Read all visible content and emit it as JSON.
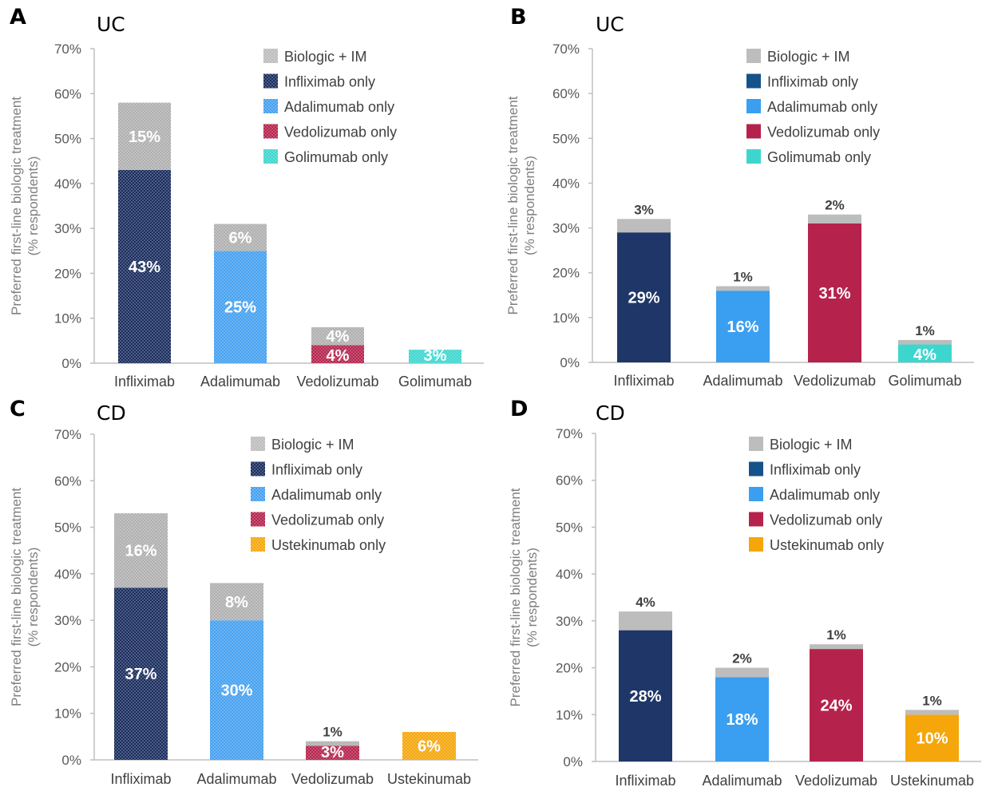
{
  "chart_data": [
    {
      "type": "bar",
      "stacked": true,
      "panel": "A",
      "subtitle": "UC",
      "ylabel": "Preferred first-line biologic treatment (% respondents)",
      "ylim": [
        0,
        70
      ],
      "yticks": [
        "0%",
        "10%",
        "20%",
        "30%",
        "40%",
        "50%",
        "60%",
        "70%"
      ],
      "categories": [
        "Infliximab",
        "Adalimumab",
        "Vedolizumab",
        "Golimumab"
      ],
      "legend": [
        "Biologic + IM",
        "Infliximab only",
        "Adalimumab only",
        "Vedolizumab only",
        "Golimumab only"
      ],
      "legend_colors": [
        "#bdbdbd",
        "#1a2d5e",
        "#44a0f0",
        "#b5234c",
        "#3dd6cf"
      ],
      "pattern": "dotted",
      "bars": [
        {
          "only": 43,
          "only_label": "43%",
          "im": 15,
          "im_label": "15%",
          "color": "#1a2d5e"
        },
        {
          "only": 25,
          "only_label": "25%",
          "im": 6,
          "im_label": "6%",
          "color": "#44a0f0"
        },
        {
          "only": 4,
          "only_label": "4%",
          "im": 4,
          "im_label": "4%",
          "color": "#b5234c"
        },
        {
          "only": 3,
          "only_label": "3%",
          "im": 0,
          "im_label": "",
          "color": "#3dd6cf"
        }
      ]
    },
    {
      "type": "bar",
      "stacked": true,
      "panel": "B",
      "subtitle": "UC",
      "ylabel": "Preferred first-line biologic treatment (% respondents)",
      "ylim": [
        0,
        70
      ],
      "yticks": [
        "0%",
        "10%",
        "20%",
        "30%",
        "40%",
        "50%",
        "60%",
        "70%"
      ],
      "categories": [
        "Infliximab",
        "Adalimumab",
        "Vedolizumab",
        "Golimumab"
      ],
      "legend": [
        "Biologic + IM",
        "Infliximab only",
        "Adalimumab only",
        "Vedolizumab only",
        "Golimumab only"
      ],
      "legend_colors": [
        "#bdbdbd",
        "#16528a",
        "#3a9ff0",
        "#b5234c",
        "#3dd6cf"
      ],
      "pattern": "solid",
      "bars": [
        {
          "only": 29,
          "only_label": "29%",
          "im": 3,
          "im_label": "3%",
          "color": "#1f3768"
        },
        {
          "only": 16,
          "only_label": "16%",
          "im": 1,
          "im_label": "1%",
          "color": "#3a9ff0"
        },
        {
          "only": 31,
          "only_label": "31%",
          "im": 2,
          "im_label": "2%",
          "color": "#b5234c"
        },
        {
          "only": 4,
          "only_label": "4%",
          "im": 1,
          "im_label": "1%",
          "color": "#3dd6cf"
        }
      ]
    },
    {
      "type": "bar",
      "stacked": true,
      "panel": "C",
      "subtitle": "CD",
      "ylabel": "Preferred first-line biologic treatment (% respondents)",
      "ylim": [
        0,
        70
      ],
      "yticks": [
        "0%",
        "10%",
        "20%",
        "30%",
        "40%",
        "50%",
        "60%",
        "70%"
      ],
      "categories": [
        "Infliximab",
        "Adalimumab",
        "Vedolizumab",
        "Ustekinumab"
      ],
      "legend": [
        "Biologic + IM",
        "Infliximab only",
        "Adalimumab only",
        "Vedolizumab only",
        "Ustekinumab only"
      ],
      "legend_colors": [
        "#bdbdbd",
        "#1a2d5e",
        "#44a0f0",
        "#b5234c",
        "#f5a60b"
      ],
      "pattern": "dotted",
      "bars": [
        {
          "only": 37,
          "only_label": "37%",
          "im": 16,
          "im_label": "16%",
          "color": "#1a2d5e"
        },
        {
          "only": 30,
          "only_label": "30%",
          "im": 8,
          "im_label": "8%",
          "color": "#44a0f0"
        },
        {
          "only": 3,
          "only_label": "3%",
          "im": 1,
          "im_label": "1%",
          "color": "#b5234c"
        },
        {
          "only": 6,
          "only_label": "6%",
          "im": 0,
          "im_label": "",
          "color": "#f5a60b"
        }
      ]
    },
    {
      "type": "bar",
      "stacked": true,
      "panel": "D",
      "subtitle": "CD",
      "ylabel": "Preferred first-line biologic treatment (% respondents)",
      "ylim": [
        0,
        70
      ],
      "yticks": [
        "0%",
        "10%",
        "20%",
        "30%",
        "40%",
        "50%",
        "60%",
        "70%"
      ],
      "categories": [
        "Infliximab",
        "Adalimumab",
        "Vedolizumab",
        "Ustekinumab"
      ],
      "legend": [
        "Biologic + IM",
        "Infliximab only",
        "Adalimumab only",
        "Vedolizumab only",
        "Ustekinumab only"
      ],
      "legend_colors": [
        "#bdbdbd",
        "#16528a",
        "#3a9ff0",
        "#b5234c",
        "#f5a60b"
      ],
      "pattern": "solid",
      "bars": [
        {
          "only": 28,
          "only_label": "28%",
          "im": 4,
          "im_label": "4%",
          "color": "#1f3768"
        },
        {
          "only": 18,
          "only_label": "18%",
          "im": 2,
          "im_label": "2%",
          "color": "#3a9ff0"
        },
        {
          "only": 24,
          "only_label": "24%",
          "im": 1,
          "im_label": "1%",
          "color": "#b5234c"
        },
        {
          "only": 10,
          "only_label": "10%",
          "im": 1,
          "im_label": "1%",
          "color": "#f5a60b"
        }
      ]
    }
  ]
}
